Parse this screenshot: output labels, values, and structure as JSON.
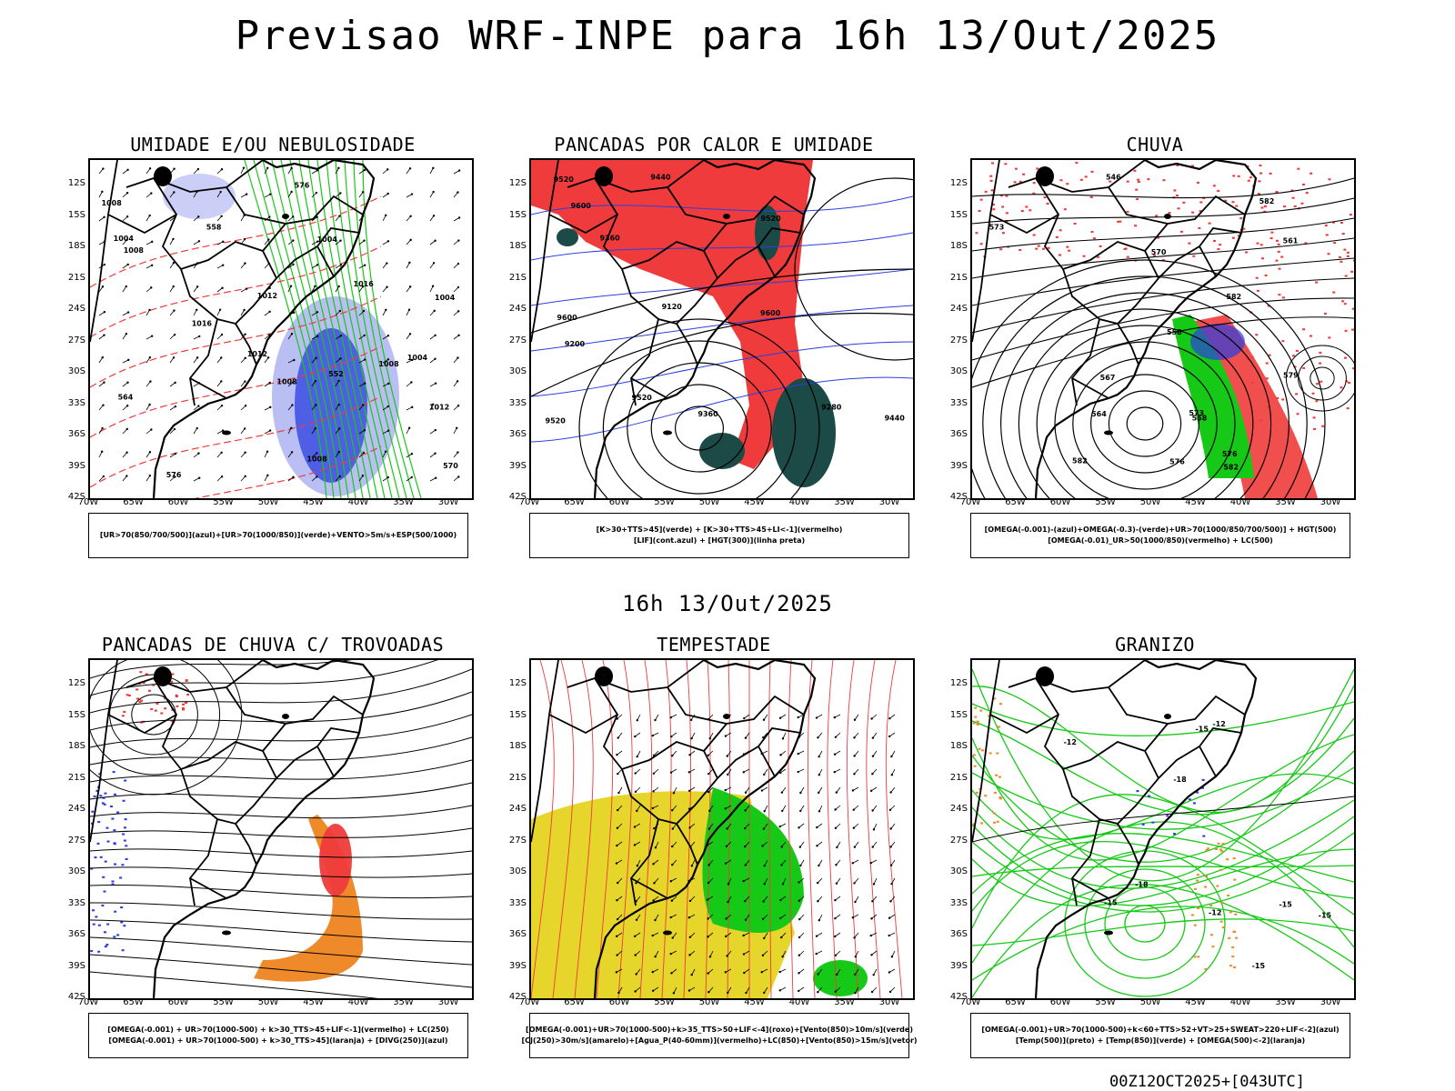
{
  "header": {
    "title": "Previsao WRF-INPE  para 16h 13/Out/2025",
    "middle_label": "16h 13/Out/2025",
    "footer_code": "00Z12OCT2025+[043UTC]"
  },
  "axes": {
    "lat_ticks": [
      "12S",
      "15S",
      "18S",
      "21S",
      "24S",
      "27S",
      "30S",
      "33S",
      "36S",
      "39S",
      "42S"
    ],
    "lon_ticks": [
      "70W",
      "65W",
      "60W",
      "55W",
      "50W",
      "45W",
      "40W",
      "35W",
      "30W"
    ]
  },
  "colors": {
    "red": "#ef3b3b",
    "green": "#17c917",
    "blue": "#2b3fe0",
    "lightblue": "#a8aef0",
    "darkteal": "#1c4a46",
    "yellow": "#e6d52a",
    "orange": "#ef8a2a",
    "black": "#000000"
  },
  "panels": [
    {
      "id": "umidade",
      "title": "UMIDADE E/OU NEBULOSIDADE",
      "legend": [
        "[UR>70(850/700/500)](azul)+[UR>70(1000/850)](verde)+VENTO>5m/s+ESP(500/1000)"
      ],
      "contour_labels": [
        "1008",
        "1008",
        "1008",
        "1004",
        "1008",
        "1004",
        "1012",
        "1016",
        "1004",
        "1008",
        "1004",
        "1012",
        "1016",
        "1012",
        "576",
        "576",
        "570",
        "564",
        "558",
        "552"
      ]
    },
    {
      "id": "pancadas-calor",
      "title": "PANCADAS POR CALOR E UMIDADE",
      "legend": [
        "[K>30+TTS>45](verde) + [K>30+TTS>45+LI<-1](vermelho)",
        "[LIF](cont.azul) + [HGT(300)](linha preta)"
      ],
      "contour_labels": [
        "9600",
        "9600",
        "9600",
        "9520",
        "9520",
        "9520",
        "9520",
        "9440",
        "9440",
        "9360",
        "9360",
        "9280",
        "9200",
        "9120"
      ]
    },
    {
      "id": "chuva",
      "title": "CHUVA",
      "legend": [
        "[OMEGA(-0.001)-(azul)+OMEGA(-0.3)-(verde)+UR>70(1000/850/700/500)] + HGT(500)",
        "[OMEGA(-0.01)_UR>50(1000/850)(vermelho) + LC(500)"
      ],
      "contour_labels": [
        "582",
        "582",
        "582",
        "582",
        "579",
        "576",
        "576",
        "573",
        "570",
        "567",
        "564",
        "561",
        "558",
        "546",
        "573",
        "558"
      ]
    },
    {
      "id": "pancadas-trovoadas",
      "title": "PANCADAS DE CHUVA C/ TROVOADAS",
      "legend": [
        "[OMEGA(-0.001) + UR>70(1000-500) + k>30_TTS>45+LIF<-1](vermelho) + LC(250)",
        "[OMEGA(-0.001) + UR>70(1000-500) + k>30_TTS>45](laranja) + [DIVG(250)](azul)"
      ],
      "contour_labels": []
    },
    {
      "id": "tempestade",
      "title": "TEMPESTADE",
      "legend": [
        "[OMEGA(-0.001)+UR>70(1000-500)+k>35_TTS>50+LIF<-4](roxo)+[Vento(850)>10m/s](verde)",
        "[CJ(250)>30m/s](amarelo)+[Agua_P(40-60mm)](vermelho)+LC(850)+[Vento(850)>15m/s](vetor)"
      ],
      "contour_labels": []
    },
    {
      "id": "granizo",
      "title": "GRANIZO",
      "legend": [
        "[OMEGA(-0.001)+UR>70(1000-500)+k<60+TTS>52+VT>25+SWEAT>220+LIF<-2](azul)",
        "[Temp(500)](preto) + [Temp(850)](verde) + [OMEGA(500)<-2](laranja)"
      ],
      "contour_labels": [
        "-15",
        "-15",
        "-15",
        "-18",
        "-15",
        "-12",
        "-12",
        "-12",
        "-18",
        "-15"
      ]
    }
  ]
}
